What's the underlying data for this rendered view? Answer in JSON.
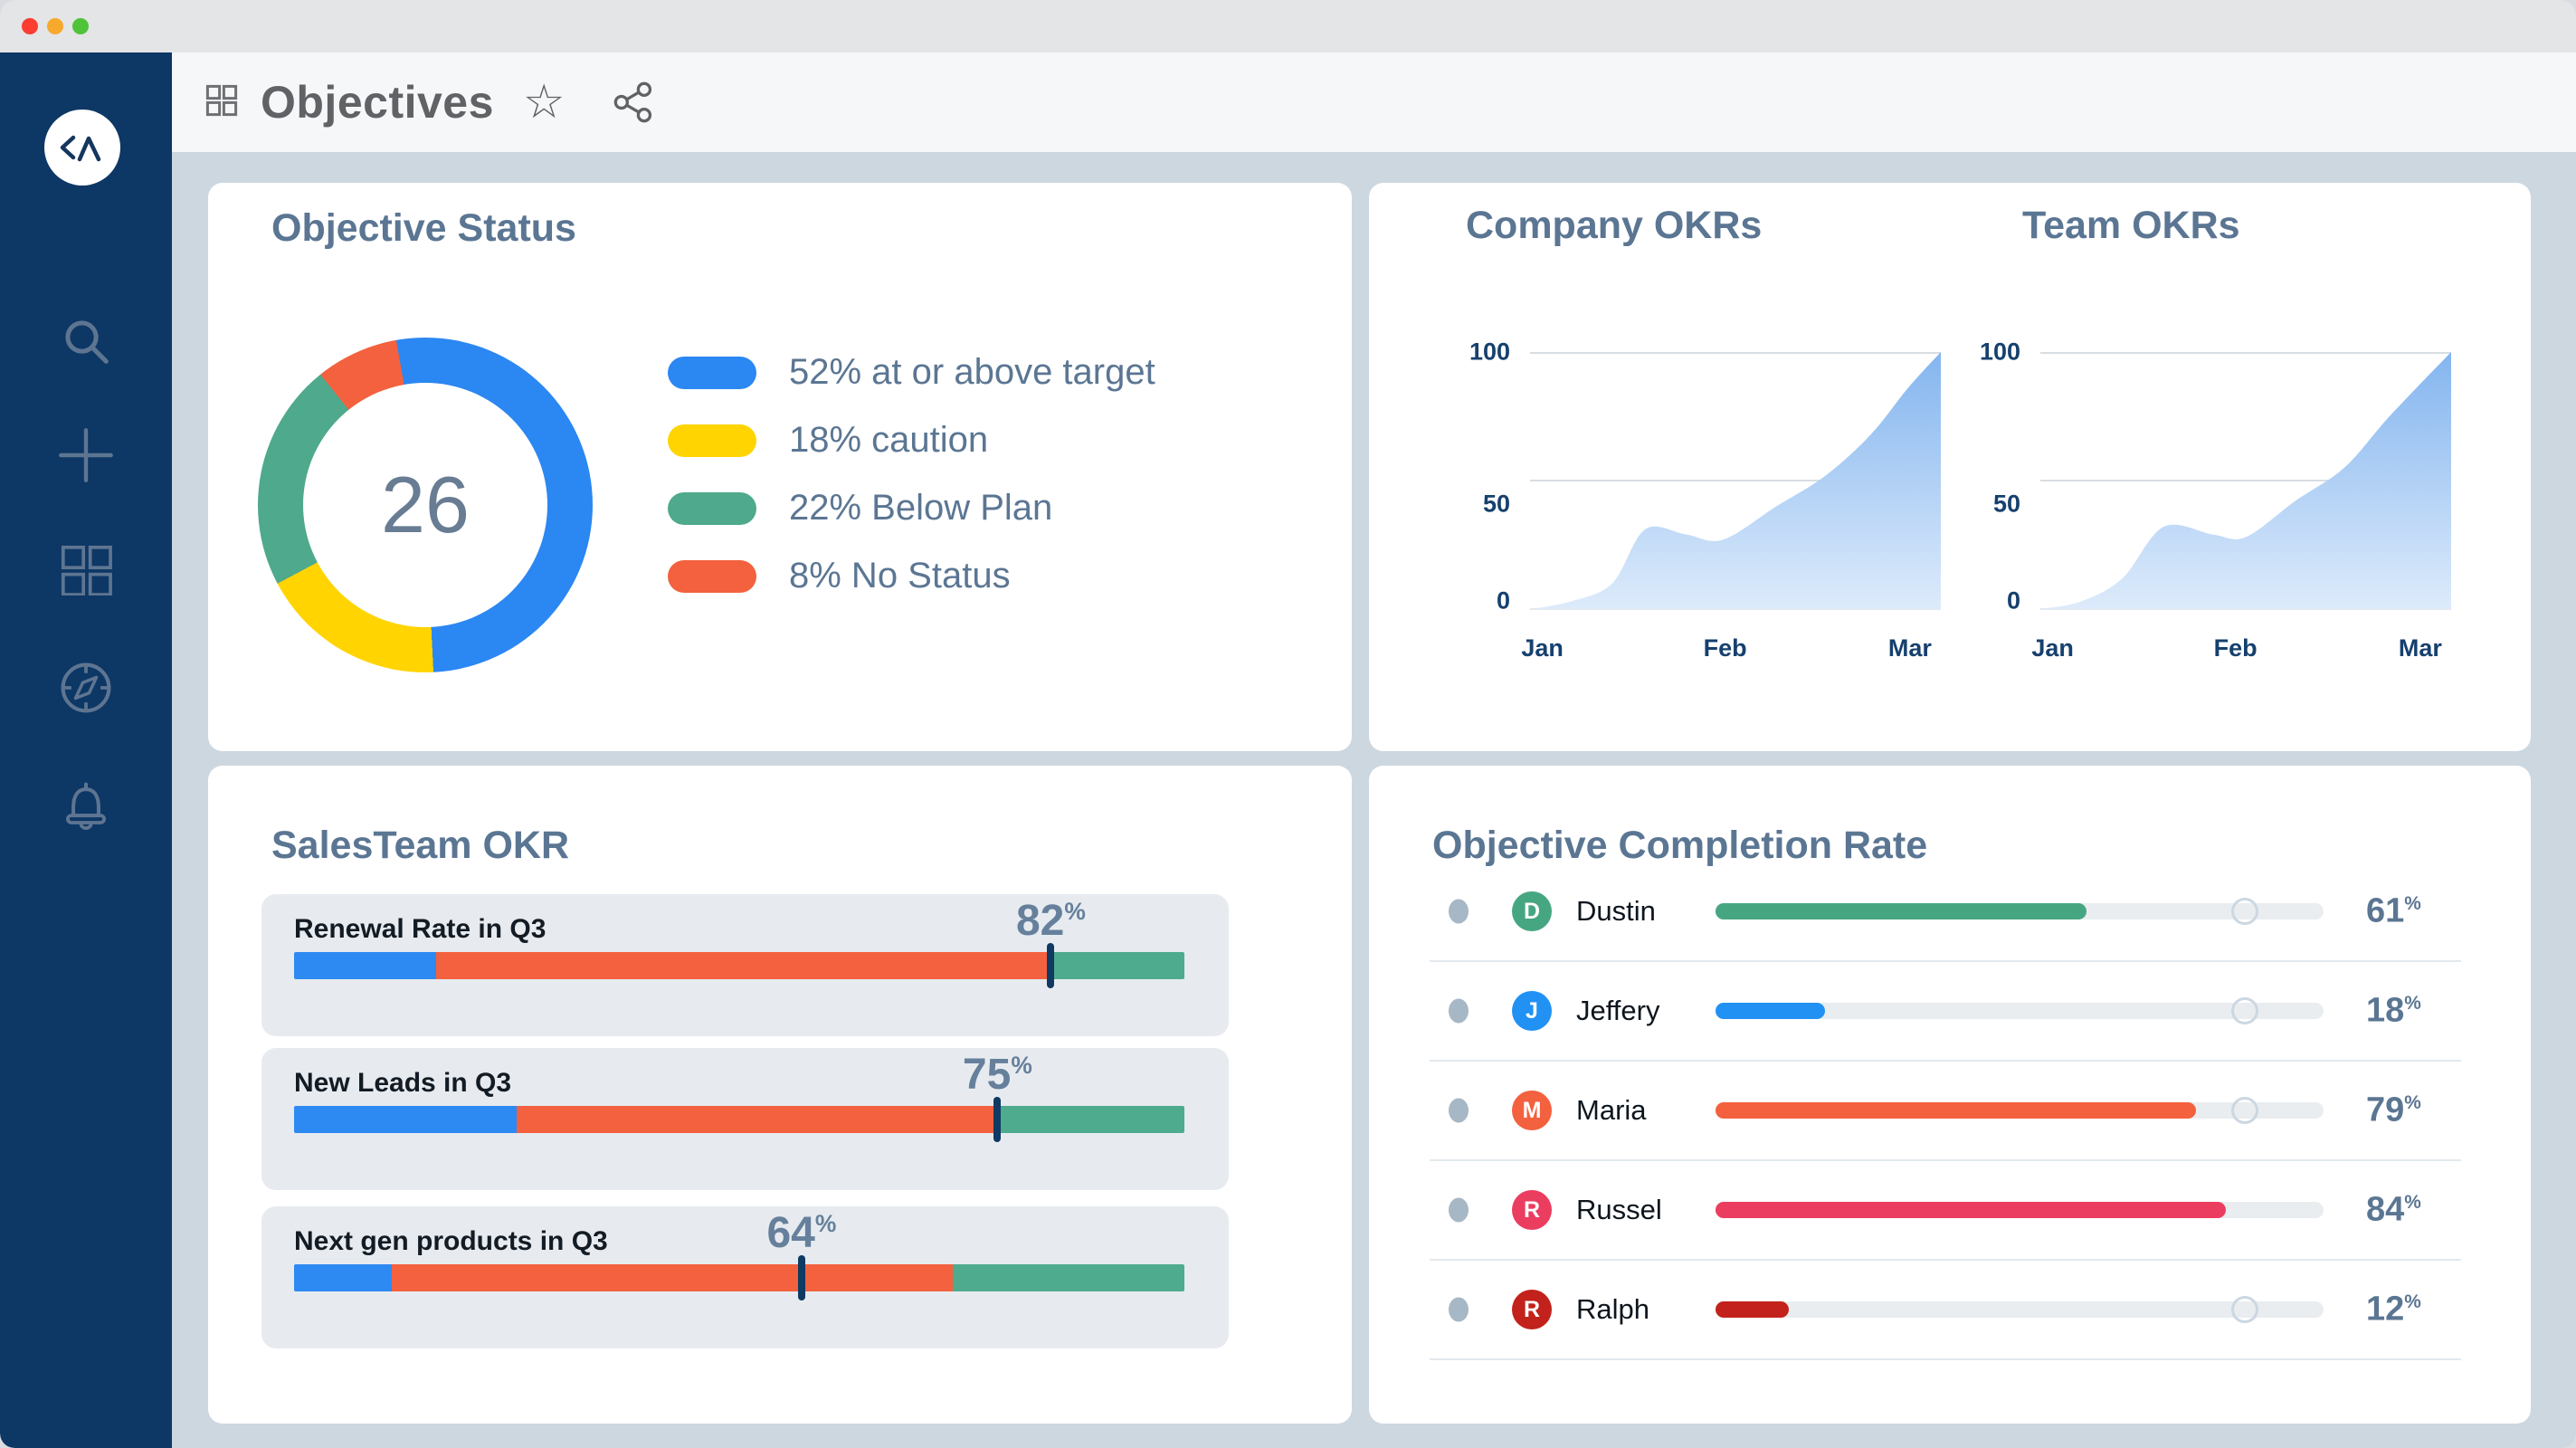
{
  "window": {
    "buttons": [
      {
        "name": "close",
        "color": "#fc3d32"
      },
      {
        "name": "minimize",
        "color": "#f7a92d"
      },
      {
        "name": "zoom",
        "color": "#4fc33a"
      }
    ]
  },
  "sidebar": {
    "bg_color": "#0d3765",
    "icon_color": "#5e7591",
    "logo_glyph": "<^",
    "items": [
      {
        "icon": "search"
      },
      {
        "icon": "add"
      },
      {
        "icon": "apps-grid"
      },
      {
        "icon": "compass"
      },
      {
        "icon": "notifications-bell"
      }
    ]
  },
  "header": {
    "title": "Objectives",
    "icons": [
      "apps-grid",
      "favorite-star",
      "share"
    ]
  },
  "chart_data": [
    {
      "id": "objective-status",
      "type": "donut",
      "title": "Objective Status",
      "center_value": "26",
      "slices": [
        {
          "label": "52% at or above target",
          "pct": 52,
          "color": "#2b87f2"
        },
        {
          "label": "18% caution",
          "pct": 18,
          "color": "#ffd401"
        },
        {
          "label": "22% Below Plan",
          "pct": 22,
          "color": "#4fa98c"
        },
        {
          "label": "8% No Status",
          "pct": 8,
          "color": "#f3613e"
        }
      ]
    },
    {
      "id": "company-okrs",
      "type": "area",
      "title": "Company OKRs",
      "xticks": [
        "Jan",
        "Feb",
        "Mar"
      ],
      "yticks": [
        100,
        50,
        0
      ],
      "ylim": [
        0,
        100
      ],
      "grid": true,
      "points": [
        [
          0,
          0
        ],
        [
          0.1,
          3
        ],
        [
          0.2,
          10
        ],
        [
          0.28,
          31
        ],
        [
          0.38,
          29
        ],
        [
          0.47,
          27
        ],
        [
          0.6,
          40
        ],
        [
          0.72,
          52
        ],
        [
          0.83,
          68
        ],
        [
          0.92,
          86
        ],
        [
          1,
          100
        ]
      ]
    },
    {
      "id": "team-okrs",
      "type": "area",
      "title": "Team OKRs",
      "xticks": [
        "Jan",
        "Feb",
        "Mar"
      ],
      "yticks": [
        100,
        50,
        0
      ],
      "ylim": [
        0,
        100
      ],
      "grid": true,
      "points": [
        [
          0,
          0
        ],
        [
          0.1,
          3
        ],
        [
          0.2,
          12
        ],
        [
          0.3,
          32
        ],
        [
          0.42,
          29
        ],
        [
          0.5,
          28
        ],
        [
          0.62,
          42
        ],
        [
          0.74,
          55
        ],
        [
          0.85,
          75
        ],
        [
          1,
          100
        ]
      ]
    },
    {
      "id": "salesteam-okr",
      "type": "bullet-bars",
      "title": "SalesTeam OKR",
      "bars": [
        {
          "label": "Renewal Rate in Q3",
          "value": 82,
          "marker_pct": 85,
          "segments": [
            {
              "color": "#2e8af3",
              "pct": 16
            },
            {
              "color": "#f3613e",
              "pct": 69
            },
            {
              "color": "#4fab8d",
              "pct": 15
            }
          ]
        },
        {
          "label": "New Leads in Q3",
          "value": 75,
          "marker_pct": 79,
          "segments": [
            {
              "color": "#2e8af3",
              "pct": 25
            },
            {
              "color": "#f3613e",
              "pct": 54
            },
            {
              "color": "#4fab8d",
              "pct": 21
            }
          ]
        },
        {
          "label": "Next gen products in Q3",
          "value": 64,
          "marker_pct": 57,
          "segments": [
            {
              "color": "#2e8af3",
              "pct": 11
            },
            {
              "color": "#f3613e",
              "pct": 63
            },
            {
              "color": "#4fab8d",
              "pct": 26
            }
          ]
        }
      ]
    },
    {
      "id": "objective-completion-rate",
      "type": "progress-list",
      "title": "Objective Completion Rate",
      "target_marker_pct": 87,
      "rows": [
        {
          "name": "Dustin",
          "initial": "D",
          "value": 61,
          "color": "#47a682",
          "show_marker": true
        },
        {
          "name": "Jeffery",
          "initial": "J",
          "value": 18,
          "color": "#2191f4",
          "show_marker": true
        },
        {
          "name": "Maria",
          "initial": "M",
          "value": 79,
          "color": "#f3613e",
          "show_marker": true
        },
        {
          "name": "Russel",
          "initial": "R",
          "value": 84,
          "color": "#eb3d60",
          "show_marker": false
        },
        {
          "name": "Ralph",
          "initial": "R",
          "value": 12,
          "color": "#c2221b",
          "show_marker": true
        }
      ]
    }
  ]
}
